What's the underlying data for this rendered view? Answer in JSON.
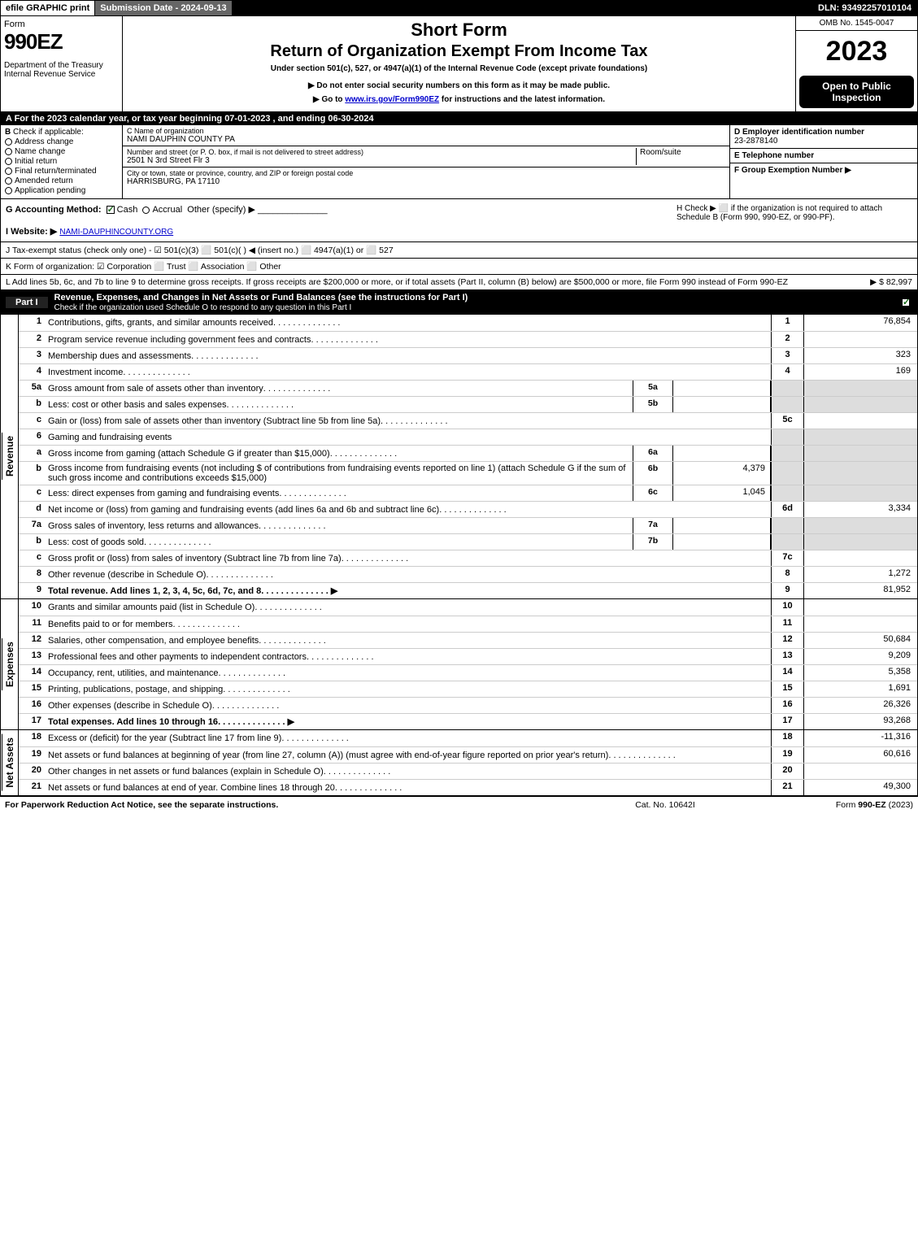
{
  "topbar": {
    "efile": "efile GRAPHIC print",
    "submission": "Submission Date - 2024-09-13",
    "dln": "DLN: 93492257010104"
  },
  "header": {
    "form_word": "Form",
    "form_num": "990EZ",
    "dept": "Department of the Treasury\nInternal Revenue Service",
    "short": "Short Form",
    "title": "Return of Organization Exempt From Income Tax",
    "sub": "Under section 501(c), 527, or 4947(a)(1) of the Internal Revenue Code (except private foundations)",
    "note": "▶ Do not enter social security numbers on this form as it may be made public.",
    "link_pre": "▶ Go to ",
    "link_url": "www.irs.gov/Form990EZ",
    "link_post": " for instructions and the latest information.",
    "omb": "OMB No. 1545-0047",
    "year": "2023",
    "open": "Open to Public Inspection"
  },
  "row_a": "A  For the 2023 calendar year, or tax year beginning 07-01-2023 , and ending 06-30-2024",
  "box_b": {
    "label": "Check if applicable:",
    "items": [
      "Address change",
      "Name change",
      "Initial return",
      "Final return/terminated",
      "Amended return",
      "Application pending"
    ]
  },
  "box_c": {
    "name_label": "C Name of organization",
    "name": "NAMI DAUPHIN COUNTY PA",
    "street_label": "Number and street (or P. O. box, if mail is not delivered to street address)",
    "street": "2501 N 3rd Street Flr 3",
    "room_label": "Room/suite",
    "city_label": "City or town, state or province, country, and ZIP or foreign postal code",
    "city": "HARRISBURG, PA  17110"
  },
  "box_d": {
    "ein_label": "D Employer identification number",
    "ein": "23-2878140",
    "tel_label": "E Telephone number",
    "group_label": "F Group Exemption Number   ▶"
  },
  "row_g": {
    "g": "G Accounting Method:",
    "cash": "Cash",
    "accrual": "Accrual",
    "other": "Other (specify) ▶",
    "i_label": "I Website: ▶",
    "i_val": "NAMI-DAUPHINCOUNTY.ORG",
    "h": "H  Check ▶ ⬜ if the organization is not required to attach Schedule B (Form 990, 990-EZ, or 990-PF)."
  },
  "row_j": "J Tax-exempt status (check only one) - ☑ 501(c)(3) ⬜ 501(c)(  ) ◀ (insert no.) ⬜ 4947(a)(1) or ⬜ 527",
  "row_k": "K Form of organization:  ☑ Corporation  ⬜ Trust  ⬜ Association  ⬜ Other",
  "row_l": {
    "text": "L Add lines 5b, 6c, and 7b to line 9 to determine gross receipts. If gross receipts are $200,000 or more, or if total assets (Part II, column (B) below) are $500,000 or more, file Form 990 instead of Form 990-EZ",
    "val": "▶ $ 82,997"
  },
  "part1": {
    "label": "Part I",
    "title": "Revenue, Expenses, and Changes in Net Assets or Fund Balances (see the instructions for Part I)",
    "check": "Check if the organization used Schedule O to respond to any question in this Part I"
  },
  "revenue": {
    "l1": {
      "n": "1",
      "d": "Contributions, gifts, grants, and similar amounts received",
      "c": "1",
      "v": "76,854"
    },
    "l2": {
      "n": "2",
      "d": "Program service revenue including government fees and contracts",
      "c": "2",
      "v": ""
    },
    "l3": {
      "n": "3",
      "d": "Membership dues and assessments",
      "c": "3",
      "v": "323"
    },
    "l4": {
      "n": "4",
      "d": "Investment income",
      "c": "4",
      "v": "169"
    },
    "l5a": {
      "n": "5a",
      "d": "Gross amount from sale of assets other than inventory",
      "sb": "5a",
      "sv": ""
    },
    "l5b": {
      "n": "b",
      "d": "Less: cost or other basis and sales expenses",
      "sb": "5b",
      "sv": ""
    },
    "l5c": {
      "n": "c",
      "d": "Gain or (loss) from sale of assets other than inventory (Subtract line 5b from line 5a)",
      "c": "5c",
      "v": ""
    },
    "l6": {
      "n": "6",
      "d": "Gaming and fundraising events"
    },
    "l6a": {
      "n": "a",
      "d": "Gross income from gaming (attach Schedule G if greater than $15,000)",
      "sb": "6a",
      "sv": ""
    },
    "l6b": {
      "n": "b",
      "d": "Gross income from fundraising events (not including $               of contributions from fundraising events reported on line 1) (attach Schedule G if the sum of such gross income and contributions exceeds $15,000)",
      "sb": "6b",
      "sv": "4,379"
    },
    "l6c": {
      "n": "c",
      "d": "Less: direct expenses from gaming and fundraising events",
      "sb": "6c",
      "sv": "1,045"
    },
    "l6d": {
      "n": "d",
      "d": "Net income or (loss) from gaming and fundraising events (add lines 6a and 6b and subtract line 6c)",
      "c": "6d",
      "v": "3,334"
    },
    "l7a": {
      "n": "7a",
      "d": "Gross sales of inventory, less returns and allowances",
      "sb": "7a",
      "sv": ""
    },
    "l7b": {
      "n": "b",
      "d": "Less: cost of goods sold",
      "sb": "7b",
      "sv": ""
    },
    "l7c": {
      "n": "c",
      "d": "Gross profit or (loss) from sales of inventory (Subtract line 7b from line 7a)",
      "c": "7c",
      "v": ""
    },
    "l8": {
      "n": "8",
      "d": "Other revenue (describe in Schedule O)",
      "c": "8",
      "v": "1,272"
    },
    "l9": {
      "n": "9",
      "d": "Total revenue. Add lines 1, 2, 3, 4, 5c, 6d, 7c, and 8",
      "c": "9",
      "v": "81,952",
      "bold": true,
      "arrow": true
    }
  },
  "expenses": {
    "l10": {
      "n": "10",
      "d": "Grants and similar amounts paid (list in Schedule O)",
      "c": "10",
      "v": ""
    },
    "l11": {
      "n": "11",
      "d": "Benefits paid to or for members",
      "c": "11",
      "v": ""
    },
    "l12": {
      "n": "12",
      "d": "Salaries, other compensation, and employee benefits",
      "c": "12",
      "v": "50,684"
    },
    "l13": {
      "n": "13",
      "d": "Professional fees and other payments to independent contractors",
      "c": "13",
      "v": "9,209"
    },
    "l14": {
      "n": "14",
      "d": "Occupancy, rent, utilities, and maintenance",
      "c": "14",
      "v": "5,358"
    },
    "l15": {
      "n": "15",
      "d": "Printing, publications, postage, and shipping",
      "c": "15",
      "v": "1,691"
    },
    "l16": {
      "n": "16",
      "d": "Other expenses (describe in Schedule O)",
      "c": "16",
      "v": "26,326"
    },
    "l17": {
      "n": "17",
      "d": "Total expenses. Add lines 10 through 16",
      "c": "17",
      "v": "93,268",
      "bold": true,
      "arrow": true
    }
  },
  "netassets": {
    "l18": {
      "n": "18",
      "d": "Excess or (deficit) for the year (Subtract line 17 from line 9)",
      "c": "18",
      "v": "-11,316"
    },
    "l19": {
      "n": "19",
      "d": "Net assets or fund balances at beginning of year (from line 27, column (A)) (must agree with end-of-year figure reported on prior year's return)",
      "c": "19",
      "v": "60,616"
    },
    "l20": {
      "n": "20",
      "d": "Other changes in net assets or fund balances (explain in Schedule O)",
      "c": "20",
      "v": ""
    },
    "l21": {
      "n": "21",
      "d": "Net assets or fund balances at end of year. Combine lines 18 through 20",
      "c": "21",
      "v": "49,300"
    }
  },
  "footer": {
    "f1": "For Paperwork Reduction Act Notice, see the separate instructions.",
    "f2": "Cat. No. 10642I",
    "f3": "Form 990-EZ (2023)"
  },
  "colors": {
    "black": "#000000",
    "shade": "#dddddd",
    "link": "#0000cc",
    "check": "#1a6b1a"
  }
}
